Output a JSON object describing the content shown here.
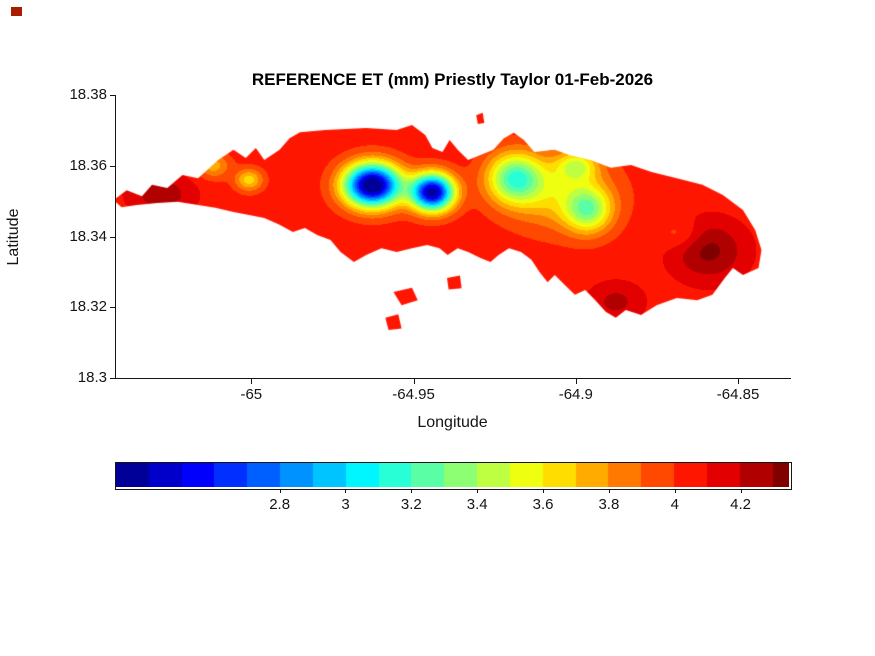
{
  "figure": {
    "background": "#ffffff",
    "axis_color": "#151515",
    "title_color": "#000000",
    "artifact_color": "#a81c00"
  },
  "chart_data": {
    "type": "heatmap",
    "subtype": "filled-contour-map",
    "title": "REFERENCE ET (mm) Priestly Taylor 01-Feb-2026",
    "xlabel": "Longitude",
    "ylabel": "Latitude",
    "xlim": [
      -65.042,
      -64.834
    ],
    "ylim": [
      18.3,
      18.38
    ],
    "xticks": [
      -65,
      -64.95,
      -64.9,
      -64.85
    ],
    "xtick_labels": [
      "-65",
      "-64.95",
      "-64.9",
      "-64.85"
    ],
    "yticks": [
      18.3,
      18.32,
      18.34,
      18.36,
      18.38
    ],
    "ytick_labels": [
      "18.3",
      "18.32",
      "18.34",
      "18.36",
      "18.38"
    ],
    "colormap": "jet",
    "clim": [
      2.3,
      4.35
    ],
    "contour_step": 0.1,
    "grid": false,
    "colorbar": {
      "orientation": "horizontal",
      "ticks": [
        2.8,
        3,
        3.2,
        3.4,
        3.6,
        3.8,
        4,
        4.2
      ],
      "tick_labels": [
        "2.8",
        "3",
        "3.2",
        "3.4",
        "3.6",
        "3.8",
        "4",
        "4.2"
      ]
    },
    "base_value": 4.05,
    "features_note": "gaussian bumps: [lon, lat, amplitude, sigma_lon, sigma_lat]",
    "features": [
      [
        -64.963,
        18.3545,
        -1.85,
        0.006,
        0.0042
      ],
      [
        -64.9445,
        18.3525,
        -1.7,
        0.0046,
        0.0036
      ],
      [
        -64.919,
        18.3565,
        -0.8,
        0.006,
        0.005
      ],
      [
        -64.9,
        18.36,
        -0.45,
        0.0045,
        0.003
      ],
      [
        -64.8965,
        18.3475,
        -0.6,
        0.005,
        0.0045
      ],
      [
        -64.905,
        18.352,
        -0.35,
        0.011,
        0.007
      ],
      [
        -65.001,
        18.356,
        -0.4,
        0.003,
        0.0022
      ],
      [
        -65.012,
        18.36,
        -0.3,
        0.0035,
        0.0025
      ],
      [
        -64.8595,
        18.336,
        0.28,
        0.008,
        0.006
      ],
      [
        -65.028,
        18.352,
        0.22,
        0.007,
        0.004
      ],
      [
        -64.888,
        18.3215,
        0.18,
        0.006,
        0.004
      ],
      [
        -64.868,
        18.3405,
        -0.15,
        0.0045,
        0.003
      ]
    ],
    "island_outline": [
      [
        -65.0428,
        18.3503
      ],
      [
        -65.0387,
        18.3531
      ],
      [
        -65.034,
        18.3514
      ],
      [
        -65.0309,
        18.3546
      ],
      [
        -65.0262,
        18.3537
      ],
      [
        -65.0215,
        18.3574
      ],
      [
        -65.0167,
        18.3565
      ],
      [
        -65.0105,
        18.3616
      ],
      [
        -65.0058,
        18.3645
      ],
      [
        -65.002,
        18.3622
      ],
      [
        -64.9989,
        18.365
      ],
      [
        -64.9963,
        18.3616
      ],
      [
        -64.9916,
        18.3645
      ],
      [
        -64.9885,
        18.3678
      ],
      [
        -64.9853,
        18.3695
      ],
      [
        -64.9775,
        18.3701
      ],
      [
        -64.9649,
        18.3707
      ],
      [
        -64.9555,
        18.3701
      ],
      [
        -64.9508,
        18.3715
      ],
      [
        -64.9467,
        18.3687
      ],
      [
        -64.9445,
        18.365
      ],
      [
        -64.9414,
        18.3639
      ],
      [
        -64.9392,
        18.3673
      ],
      [
        -64.9367,
        18.3645
      ],
      [
        -64.9335,
        18.3616
      ],
      [
        -64.9257,
        18.3645
      ],
      [
        -64.9225,
        18.3678
      ],
      [
        -64.9194,
        18.3693
      ],
      [
        -64.9163,
        18.3673
      ],
      [
        -64.9131,
        18.3639
      ],
      [
        -64.9068,
        18.3645
      ],
      [
        -64.9021,
        18.363
      ],
      [
        -64.8958,
        18.3616
      ],
      [
        -64.8895,
        18.3594
      ],
      [
        -64.8833,
        18.3602
      ],
      [
        -64.877,
        18.3582
      ],
      [
        -64.8692,
        18.3565
      ],
      [
        -64.8613,
        18.3546
      ],
      [
        -64.855,
        18.3517
      ],
      [
        -64.8488,
        18.3475
      ],
      [
        -64.845,
        18.3418
      ],
      [
        -64.8431,
        18.3362
      ],
      [
        -64.844,
        18.3311
      ],
      [
        -64.8488,
        18.3291
      ],
      [
        -64.8519,
        18.3311
      ],
      [
        -64.8544,
        18.3283
      ],
      [
        -64.8582,
        18.3235
      ],
      [
        -64.8629,
        18.322
      ],
      [
        -64.8692,
        18.3226
      ],
      [
        -64.8754,
        18.3206
      ],
      [
        -64.8802,
        18.3178
      ],
      [
        -64.8849,
        18.3192
      ],
      [
        -64.888,
        18.317
      ],
      [
        -64.8911,
        18.3187
      ],
      [
        -64.8943,
        18.322
      ],
      [
        -64.8974,
        18.3249
      ],
      [
        -64.9006,
        18.3235
      ],
      [
        -64.9037,
        18.3263
      ],
      [
        -64.9068,
        18.3291
      ],
      [
        -64.909,
        18.3271
      ],
      [
        -64.9115,
        18.33
      ],
      [
        -64.914,
        18.3334
      ],
      [
        -64.9172,
        18.3356
      ],
      [
        -64.9209,
        18.3367
      ],
      [
        -64.9241,
        18.3348
      ],
      [
        -64.9266,
        18.3328
      ],
      [
        -64.9297,
        18.3339
      ],
      [
        -64.9335,
        18.3356
      ],
      [
        -64.9367,
        18.3367
      ],
      [
        -64.9398,
        18.3348
      ],
      [
        -64.9423,
        18.3367
      ],
      [
        -64.9461,
        18.3376
      ],
      [
        -64.9508,
        18.3367
      ],
      [
        -64.9555,
        18.3356
      ],
      [
        -64.9602,
        18.3367
      ],
      [
        -64.9649,
        18.3348
      ],
      [
        -64.9687,
        18.3328
      ],
      [
        -64.9728,
        18.3356
      ],
      [
        -64.9759,
        18.339
      ],
      [
        -64.98,
        18.3404
      ],
      [
        -64.9838,
        18.3424
      ],
      [
        -64.9875,
        18.3413
      ],
      [
        -64.9916,
        18.3433
      ],
      [
        -64.9963,
        18.3452
      ],
      [
        -65.001,
        18.3461
      ],
      [
        -65.0058,
        18.3469
      ],
      [
        -65.0114,
        18.3481
      ],
      [
        -65.0167,
        18.3489
      ],
      [
        -65.023,
        18.3498
      ],
      [
        -65.0293,
        18.3495
      ],
      [
        -65.0356,
        18.3489
      ],
      [
        -65.0403,
        18.3483
      ]
    ],
    "islets": [
      [
        [
          -64.9565,
          18.3243
        ],
        [
          -64.9508,
          18.3255
        ],
        [
          -64.949,
          18.322
        ],
        [
          -64.954,
          18.3206
        ]
      ],
      [
        [
          -64.959,
          18.317
        ],
        [
          -64.955,
          18.318
        ],
        [
          -64.954,
          18.314
        ],
        [
          -64.958,
          18.3136
        ]
      ],
      [
        [
          -64.94,
          18.3283
        ],
        [
          -64.936,
          18.329
        ],
        [
          -64.9355,
          18.3254
        ],
        [
          -64.9395,
          18.325
        ]
      ],
      [
        [
          -64.931,
          18.3743
        ],
        [
          -64.929,
          18.375
        ],
        [
          -64.9285,
          18.3721
        ],
        [
          -64.9305,
          18.3718
        ]
      ]
    ]
  }
}
